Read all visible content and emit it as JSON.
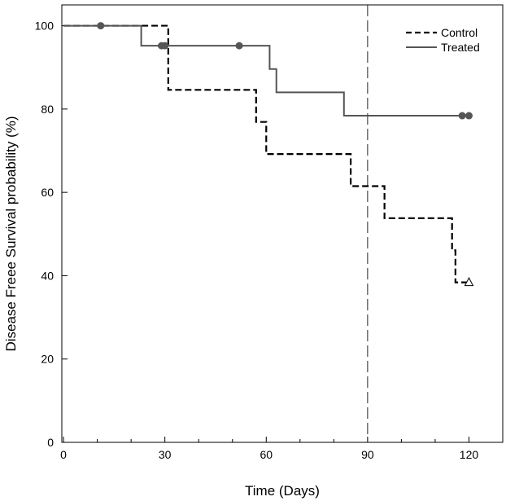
{
  "chart_data": {
    "type": "line",
    "subtype": "kaplan-meier-step",
    "title": "",
    "xlabel": "Time (Days)",
    "ylabel": "Disease Freee Survival probability (%)",
    "xlim": [
      -0.5,
      130
    ],
    "ylim": [
      0,
      105
    ],
    "x_major_ticks": [
      0,
      30,
      60,
      90,
      120
    ],
    "x_minor_ticks": [
      0,
      10,
      20,
      30,
      40,
      50,
      60,
      70,
      80,
      90,
      100,
      110,
      120
    ],
    "y_ticks": [
      0,
      20,
      40,
      60,
      80,
      100
    ],
    "reference_line": {
      "x": 90,
      "style": "long-dashed"
    },
    "legend": {
      "position": "top-right",
      "entries": [
        "Control",
        "Treated"
      ]
    },
    "series": [
      {
        "name": "Control",
        "style": "dashed",
        "color": "#000000",
        "steps": [
          [
            0,
            100
          ],
          [
            24,
            100
          ],
          [
            31,
            84.6
          ],
          [
            57,
            76.9
          ],
          [
            60,
            69.2
          ],
          [
            85,
            61.5
          ],
          [
            95,
            53.8
          ],
          [
            115,
            46.1
          ],
          [
            116,
            38.4
          ],
          [
            120,
            38.4
          ]
        ],
        "censored": [],
        "open_marker": [
          [
            120,
            38.4
          ]
        ]
      },
      {
        "name": "Treated",
        "style": "solid",
        "color": "#555555",
        "steps": [
          [
            0,
            100
          ],
          [
            23,
            95.2
          ],
          [
            61,
            89.6
          ],
          [
            63,
            84.0
          ],
          [
            83,
            78.4
          ],
          [
            120,
            78.4
          ]
        ],
        "censored": [
          [
            11,
            100
          ],
          [
            29,
            95.2
          ],
          [
            30,
            95.2
          ],
          [
            52,
            95.2
          ],
          [
            118,
            78.4
          ],
          [
            120,
            78.4
          ]
        ],
        "open_marker": []
      }
    ]
  }
}
